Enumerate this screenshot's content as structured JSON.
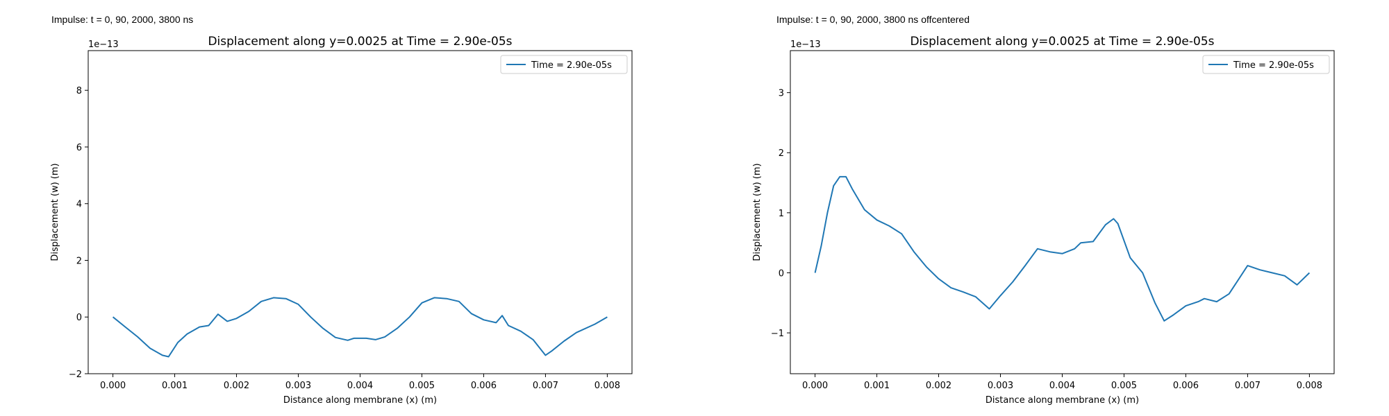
{
  "captions": {
    "left": "Impulse: t = 0, 90, 2000, 3800 ns",
    "right": "Impulse: t = 0, 90, 2000, 3800 ns offcentered"
  },
  "chart_data": [
    {
      "type": "line",
      "title": "Displacement along y=0.0025 at Time = 2.90e-05s",
      "xlabel": "Distance along membrane (x) (m)",
      "ylabel": "Displacement (w) (m)",
      "y_multiplier_label": "1e−13",
      "xlim": [
        -0.0004,
        0.0084
      ],
      "ylim": [
        -2.0,
        9.4
      ],
      "x_ticks": [
        0.0,
        0.001,
        0.002,
        0.003,
        0.004,
        0.005,
        0.006,
        0.007,
        0.008
      ],
      "x_tick_labels": [
        "0.000",
        "0.001",
        "0.002",
        "0.003",
        "0.004",
        "0.005",
        "0.006",
        "0.007",
        "0.008"
      ],
      "y_ticks": [
        -2,
        0,
        2,
        4,
        6,
        8
      ],
      "y_tick_labels": [
        "−2",
        "0",
        "2",
        "4",
        "6",
        "8"
      ],
      "grid": false,
      "legend_position": "top-right",
      "color": "#1f77b4",
      "series": [
        {
          "name": "Time = 2.90e-05s",
          "x": [
            0.0,
            0.0002,
            0.0004,
            0.0006,
            0.0008,
            0.0009,
            0.00105,
            0.0012,
            0.0014,
            0.00155,
            0.0017,
            0.00185,
            0.002,
            0.0022,
            0.0024,
            0.0026,
            0.0028,
            0.003,
            0.0032,
            0.0034,
            0.0036,
            0.0038,
            0.0039,
            0.0041,
            0.00425,
            0.0044,
            0.0046,
            0.0048,
            0.005,
            0.0052,
            0.0054,
            0.0056,
            0.0058,
            0.006,
            0.0062,
            0.0063,
            0.0064,
            0.0066,
            0.0068,
            0.007,
            0.0071,
            0.0073,
            0.0075,
            0.0078,
            0.008
          ],
          "values": [
            0.0,
            -0.35,
            -0.7,
            -1.1,
            -1.35,
            -1.4,
            -0.9,
            -0.6,
            -0.35,
            -0.3,
            0.1,
            -0.15,
            -0.05,
            0.2,
            0.55,
            0.68,
            0.65,
            0.45,
            0.0,
            -0.4,
            -0.72,
            -0.82,
            -0.75,
            -0.75,
            -0.8,
            -0.7,
            -0.4,
            0.0,
            0.5,
            0.68,
            0.65,
            0.55,
            0.12,
            -0.1,
            -0.2,
            0.05,
            -0.3,
            -0.5,
            -0.8,
            -1.35,
            -1.2,
            -0.85,
            -0.55,
            -0.25,
            0.0
          ]
        }
      ]
    },
    {
      "type": "line",
      "title": "Displacement along y=0.0025 at Time = 2.90e-05s",
      "xlabel": "Distance along membrane (x) (m)",
      "ylabel": "Displacement (w) (m)",
      "y_multiplier_label": "1e−13",
      "xlim": [
        -0.0004,
        0.0084
      ],
      "ylim": [
        -1.68,
        3.7
      ],
      "x_ticks": [
        0.0,
        0.001,
        0.002,
        0.003,
        0.004,
        0.005,
        0.006,
        0.007,
        0.008
      ],
      "x_tick_labels": [
        "0.000",
        "0.001",
        "0.002",
        "0.003",
        "0.004",
        "0.005",
        "0.006",
        "0.007",
        "0.008"
      ],
      "y_ticks": [
        -1,
        0,
        1,
        2,
        3
      ],
      "y_tick_labels": [
        "−1",
        "0",
        "1",
        "2",
        "3"
      ],
      "grid": false,
      "legend_position": "top-right",
      "color": "#1f77b4",
      "series": [
        {
          "name": "Time = 2.90e-05s",
          "x": [
            0.0,
            0.0001,
            0.0002,
            0.0003,
            0.0004,
            0.0005,
            0.0006,
            0.0008,
            0.001,
            0.0012,
            0.0014,
            0.0016,
            0.0018,
            0.002,
            0.0022,
            0.0024,
            0.0026,
            0.00282,
            0.003,
            0.0032,
            0.0034,
            0.0036,
            0.0038,
            0.004,
            0.0042,
            0.0043,
            0.0045,
            0.0047,
            0.00483,
            0.0049,
            0.0051,
            0.0053,
            0.0055,
            0.00565,
            0.0058,
            0.006,
            0.0062,
            0.0063,
            0.0065,
            0.0067,
            0.007,
            0.0072,
            0.0074,
            0.0076,
            0.0078,
            0.008
          ],
          "values": [
            0.0,
            0.45,
            1.0,
            1.45,
            1.6,
            1.6,
            1.4,
            1.05,
            0.88,
            0.78,
            0.65,
            0.35,
            0.1,
            -0.1,
            -0.25,
            -0.32,
            -0.4,
            -0.6,
            -0.38,
            -0.15,
            0.12,
            0.4,
            0.35,
            0.32,
            0.4,
            0.5,
            0.52,
            0.8,
            0.9,
            0.82,
            0.25,
            0.0,
            -0.5,
            -0.8,
            -0.7,
            -0.55,
            -0.48,
            -0.43,
            -0.48,
            -0.35,
            0.12,
            0.05,
            0.0,
            -0.05,
            -0.2,
            0.0
          ]
        }
      ]
    }
  ]
}
